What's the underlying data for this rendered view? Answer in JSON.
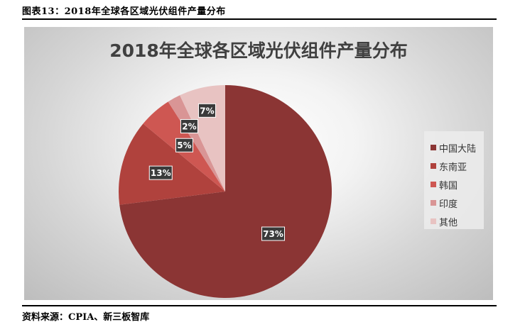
{
  "caption": "图表13：2018年全球各区域光伏组件产量分布",
  "source": "资料来源：CPIA、新三板智库",
  "chart_data": {
    "type": "pie",
    "title": "2018年全球各区域光伏组件产量分布",
    "categories": [
      "中国大陆",
      "东南亚",
      "韩国",
      "印度",
      "其他"
    ],
    "values": [
      73,
      13,
      5,
      2,
      7
    ],
    "data_labels": [
      "73%",
      "13%",
      "5%",
      "2%",
      "7%"
    ],
    "colors": [
      "#8b3534",
      "#b0423d",
      "#ce5752",
      "#d99595",
      "#e8c3c2"
    ],
    "legend_position": "right"
  }
}
